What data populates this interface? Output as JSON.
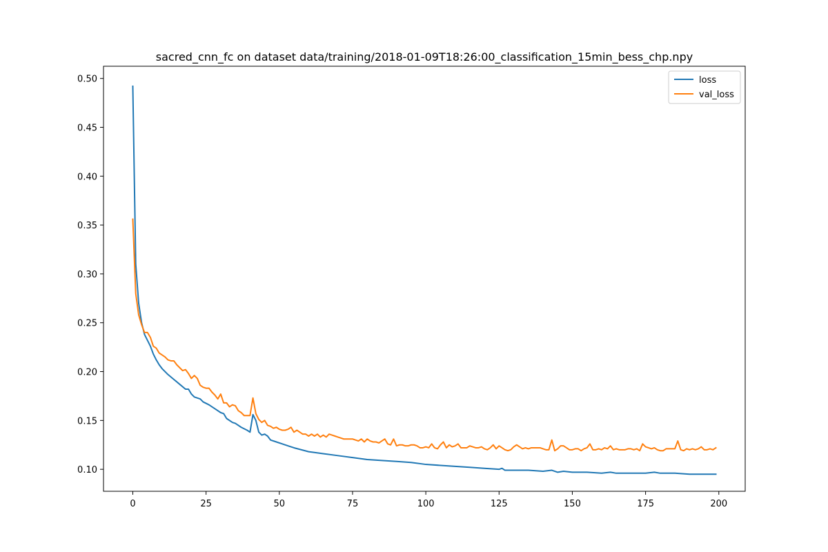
{
  "chart_data": {
    "type": "line",
    "title": "sacred_cnn_fc on dataset data/training/2018-01-09T18:26:00_classification_15min_bess_chp.npy",
    "xlabel": "",
    "ylabel": "",
    "xlim": [
      -10,
      209
    ],
    "ylim": [
      0.0775,
      0.5125
    ],
    "xticks": [
      0,
      25,
      50,
      75,
      100,
      125,
      150,
      175,
      200
    ],
    "yticks": [
      0.1,
      0.15,
      0.2,
      0.25,
      0.3,
      0.35,
      0.4,
      0.45,
      0.5
    ],
    "ytick_labels": [
      "0.10",
      "0.15",
      "0.20",
      "0.25",
      "0.30",
      "0.35",
      "0.40",
      "0.45",
      "0.50"
    ],
    "grid": false,
    "legend_position": "top-right",
    "series": [
      {
        "name": "loss",
        "color": "#1f77b4",
        "points": [
          [
            0,
            0.492
          ],
          [
            1,
            0.31
          ],
          [
            2,
            0.27
          ],
          [
            3,
            0.25
          ],
          [
            4,
            0.238
          ],
          [
            5,
            0.232
          ],
          [
            6,
            0.226
          ],
          [
            7,
            0.218
          ],
          [
            8,
            0.212
          ],
          [
            9,
            0.207
          ],
          [
            10,
            0.203
          ],
          [
            12,
            0.197
          ],
          [
            14,
            0.192
          ],
          [
            16,
            0.187
          ],
          [
            18,
            0.182
          ],
          [
            19,
            0.182
          ],
          [
            20,
            0.177
          ],
          [
            21,
            0.174
          ],
          [
            23,
            0.172
          ],
          [
            24,
            0.169
          ],
          [
            26,
            0.166
          ],
          [
            28,
            0.162
          ],
          [
            30,
            0.158
          ],
          [
            31,
            0.157
          ],
          [
            32,
            0.152
          ],
          [
            34,
            0.148
          ],
          [
            35,
            0.147
          ],
          [
            37,
            0.143
          ],
          [
            39,
            0.14
          ],
          [
            40,
            0.138
          ],
          [
            41,
            0.156
          ],
          [
            42,
            0.15
          ],
          [
            43,
            0.138
          ],
          [
            44,
            0.135
          ],
          [
            45,
            0.136
          ],
          [
            46,
            0.134
          ],
          [
            47,
            0.13
          ],
          [
            49,
            0.128
          ],
          [
            51,
            0.126
          ],
          [
            53,
            0.124
          ],
          [
            55,
            0.122
          ],
          [
            60,
            0.118
          ],
          [
            65,
            0.116
          ],
          [
            70,
            0.114
          ],
          [
            75,
            0.112
          ],
          [
            80,
            0.11
          ],
          [
            85,
            0.109
          ],
          [
            90,
            0.108
          ],
          [
            95,
            0.107
          ],
          [
            100,
            0.105
          ],
          [
            105,
            0.104
          ],
          [
            110,
            0.103
          ],
          [
            115,
            0.102
          ],
          [
            120,
            0.101
          ],
          [
            125,
            0.1
          ],
          [
            126,
            0.101
          ],
          [
            127,
            0.099
          ],
          [
            130,
            0.099
          ],
          [
            135,
            0.099
          ],
          [
            140,
            0.098
          ],
          [
            143,
            0.099
          ],
          [
            145,
            0.097
          ],
          [
            147,
            0.098
          ],
          [
            150,
            0.097
          ],
          [
            155,
            0.097
          ],
          [
            160,
            0.096
          ],
          [
            163,
            0.097
          ],
          [
            165,
            0.096
          ],
          [
            170,
            0.096
          ],
          [
            175,
            0.096
          ],
          [
            178,
            0.097
          ],
          [
            180,
            0.096
          ],
          [
            185,
            0.096
          ],
          [
            190,
            0.095
          ],
          [
            195,
            0.095
          ],
          [
            199,
            0.095
          ]
        ]
      },
      {
        "name": "val_loss",
        "color": "#ff7f0e",
        "points": [
          [
            0,
            0.356
          ],
          [
            1,
            0.28
          ],
          [
            2,
            0.258
          ],
          [
            3,
            0.248
          ],
          [
            4,
            0.24
          ],
          [
            5,
            0.24
          ],
          [
            6,
            0.235
          ],
          [
            7,
            0.226
          ],
          [
            8,
            0.224
          ],
          [
            9,
            0.219
          ],
          [
            10,
            0.217
          ],
          [
            11,
            0.215
          ],
          [
            12,
            0.212
          ],
          [
            13,
            0.211
          ],
          [
            14,
            0.211
          ],
          [
            15,
            0.207
          ],
          [
            16,
            0.204
          ],
          [
            17,
            0.201
          ],
          [
            18,
            0.202
          ],
          [
            19,
            0.198
          ],
          [
            20,
            0.193
          ],
          [
            21,
            0.196
          ],
          [
            22,
            0.193
          ],
          [
            23,
            0.186
          ],
          [
            24,
            0.184
          ],
          [
            25,
            0.183
          ],
          [
            26,
            0.183
          ],
          [
            27,
            0.179
          ],
          [
            28,
            0.176
          ],
          [
            29,
            0.172
          ],
          [
            30,
            0.177
          ],
          [
            31,
            0.168
          ],
          [
            32,
            0.168
          ],
          [
            33,
            0.164
          ],
          [
            34,
            0.166
          ],
          [
            35,
            0.165
          ],
          [
            36,
            0.16
          ],
          [
            37,
            0.158
          ],
          [
            38,
            0.155
          ],
          [
            39,
            0.155
          ],
          [
            40,
            0.155
          ],
          [
            41,
            0.173
          ],
          [
            42,
            0.157
          ],
          [
            43,
            0.151
          ],
          [
            44,
            0.148
          ],
          [
            45,
            0.15
          ],
          [
            46,
            0.145
          ],
          [
            47,
            0.144
          ],
          [
            48,
            0.142
          ],
          [
            49,
            0.143
          ],
          [
            50,
            0.141
          ],
          [
            51,
            0.14
          ],
          [
            52,
            0.14
          ],
          [
            53,
            0.141
          ],
          [
            54,
            0.143
          ],
          [
            55,
            0.138
          ],
          [
            56,
            0.14
          ],
          [
            57,
            0.138
          ],
          [
            58,
            0.136
          ],
          [
            59,
            0.136
          ],
          [
            60,
            0.134
          ],
          [
            61,
            0.136
          ],
          [
            62,
            0.134
          ],
          [
            63,
            0.136
          ],
          [
            64,
            0.133
          ],
          [
            65,
            0.135
          ],
          [
            66,
            0.133
          ],
          [
            67,
            0.136
          ],
          [
            68,
            0.135
          ],
          [
            69,
            0.134
          ],
          [
            70,
            0.133
          ],
          [
            71,
            0.132
          ],
          [
            72,
            0.131
          ],
          [
            73,
            0.131
          ],
          [
            74,
            0.131
          ],
          [
            75,
            0.131
          ],
          [
            76,
            0.13
          ],
          [
            77,
            0.129
          ],
          [
            78,
            0.131
          ],
          [
            79,
            0.128
          ],
          [
            80,
            0.131
          ],
          [
            81,
            0.129
          ],
          [
            82,
            0.128
          ],
          [
            83,
            0.128
          ],
          [
            84,
            0.127
          ],
          [
            85,
            0.129
          ],
          [
            86,
            0.131
          ],
          [
            87,
            0.126
          ],
          [
            88,
            0.125
          ],
          [
            89,
            0.131
          ],
          [
            90,
            0.124
          ],
          [
            91,
            0.125
          ],
          [
            92,
            0.125
          ],
          [
            93,
            0.124
          ],
          [
            94,
            0.124
          ],
          [
            95,
            0.125
          ],
          [
            96,
            0.125
          ],
          [
            97,
            0.124
          ],
          [
            98,
            0.122
          ],
          [
            99,
            0.122
          ],
          [
            100,
            0.123
          ],
          [
            101,
            0.122
          ],
          [
            102,
            0.126
          ],
          [
            103,
            0.122
          ],
          [
            104,
            0.121
          ],
          [
            105,
            0.125
          ],
          [
            106,
            0.128
          ],
          [
            107,
            0.122
          ],
          [
            108,
            0.125
          ],
          [
            109,
            0.123
          ],
          [
            110,
            0.124
          ],
          [
            111,
            0.126
          ],
          [
            112,
            0.122
          ],
          [
            113,
            0.122
          ],
          [
            114,
            0.122
          ],
          [
            115,
            0.124
          ],
          [
            116,
            0.123
          ],
          [
            117,
            0.122
          ],
          [
            118,
            0.122
          ],
          [
            119,
            0.123
          ],
          [
            120,
            0.121
          ],
          [
            121,
            0.12
          ],
          [
            122,
            0.122
          ],
          [
            123,
            0.125
          ],
          [
            124,
            0.121
          ],
          [
            125,
            0.124
          ],
          [
            126,
            0.122
          ],
          [
            127,
            0.12
          ],
          [
            128,
            0.119
          ],
          [
            129,
            0.12
          ],
          [
            130,
            0.123
          ],
          [
            131,
            0.125
          ],
          [
            132,
            0.123
          ],
          [
            133,
            0.121
          ],
          [
            134,
            0.122
          ],
          [
            135,
            0.121
          ],
          [
            136,
            0.122
          ],
          [
            137,
            0.122
          ],
          [
            138,
            0.122
          ],
          [
            139,
            0.122
          ],
          [
            140,
            0.121
          ],
          [
            141,
            0.12
          ],
          [
            142,
            0.12
          ],
          [
            143,
            0.13
          ],
          [
            144,
            0.119
          ],
          [
            145,
            0.121
          ],
          [
            146,
            0.124
          ],
          [
            147,
            0.124
          ],
          [
            148,
            0.122
          ],
          [
            149,
            0.12
          ],
          [
            150,
            0.12
          ],
          [
            151,
            0.121
          ],
          [
            152,
            0.121
          ],
          [
            153,
            0.119
          ],
          [
            154,
            0.121
          ],
          [
            155,
            0.122
          ],
          [
            156,
            0.126
          ],
          [
            157,
            0.12
          ],
          [
            158,
            0.12
          ],
          [
            159,
            0.121
          ],
          [
            160,
            0.12
          ],
          [
            161,
            0.122
          ],
          [
            162,
            0.121
          ],
          [
            163,
            0.124
          ],
          [
            164,
            0.12
          ],
          [
            165,
            0.121
          ],
          [
            166,
            0.12
          ],
          [
            167,
            0.12
          ],
          [
            168,
            0.12
          ],
          [
            169,
            0.121
          ],
          [
            170,
            0.121
          ],
          [
            171,
            0.12
          ],
          [
            172,
            0.121
          ],
          [
            173,
            0.119
          ],
          [
            174,
            0.126
          ],
          [
            175,
            0.123
          ],
          [
            176,
            0.122
          ],
          [
            177,
            0.121
          ],
          [
            178,
            0.122
          ],
          [
            179,
            0.12
          ],
          [
            180,
            0.119
          ],
          [
            181,
            0.119
          ],
          [
            182,
            0.121
          ],
          [
            183,
            0.121
          ],
          [
            184,
            0.121
          ],
          [
            185,
            0.121
          ],
          [
            186,
            0.129
          ],
          [
            187,
            0.12
          ],
          [
            188,
            0.119
          ],
          [
            189,
            0.121
          ],
          [
            190,
            0.12
          ],
          [
            191,
            0.121
          ],
          [
            192,
            0.12
          ],
          [
            193,
            0.121
          ],
          [
            194,
            0.123
          ],
          [
            195,
            0.12
          ],
          [
            196,
            0.12
          ],
          [
            197,
            0.121
          ],
          [
            198,
            0.12
          ],
          [
            199,
            0.122
          ]
        ]
      }
    ]
  }
}
